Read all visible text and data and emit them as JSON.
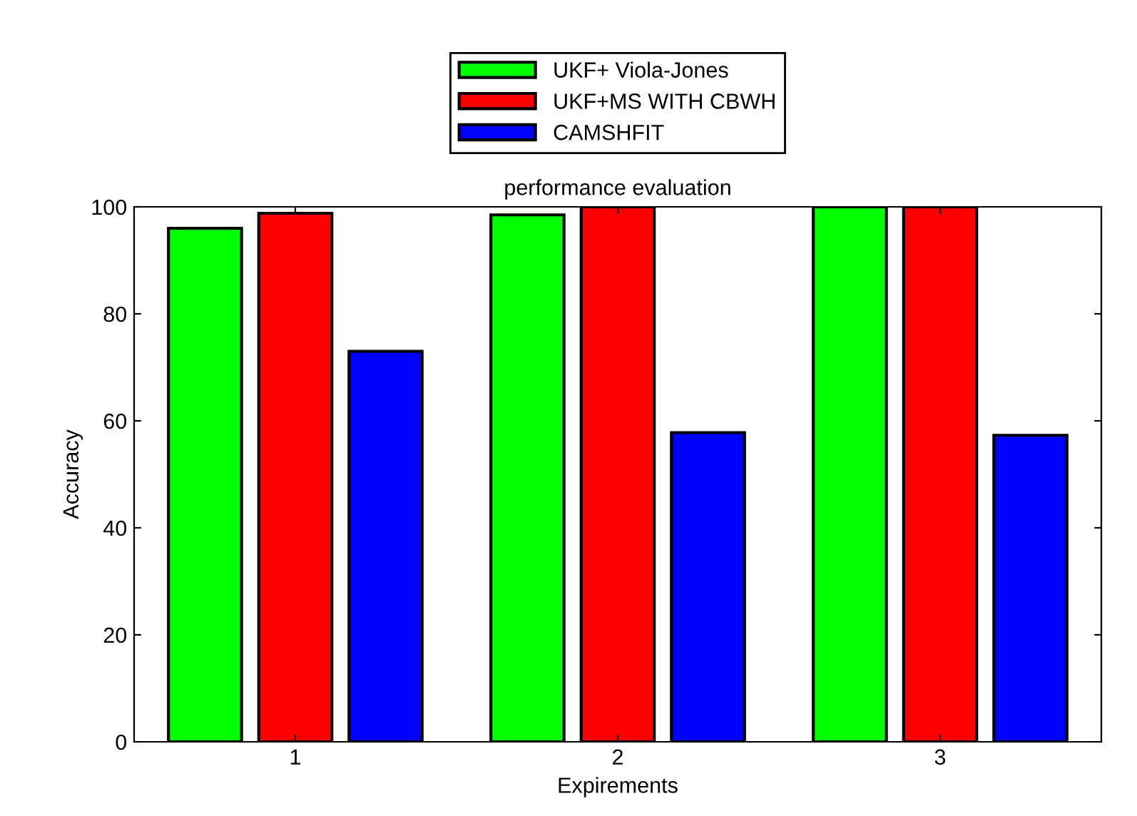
{
  "chart_data": {
    "type": "bar",
    "title": "performance evaluation",
    "xlabel": "Expirements",
    "ylabel": "Accuracy",
    "categories": [
      "1",
      "2",
      "3"
    ],
    "series": [
      {
        "name": "UKF+ Viola-Jones",
        "color": "#00ff00",
        "values": [
          96,
          98.5,
          100
        ]
      },
      {
        "name": "UKF+MS WITH CBWH",
        "color": "#ff0000",
        "values": [
          98.8,
          100,
          100
        ]
      },
      {
        "name": "CAMSHFIT",
        "color": "#0000ff",
        "values": [
          73,
          57.8,
          57.3
        ]
      }
    ],
    "ylim": [
      0,
      100
    ],
    "yticks": [
      0,
      20,
      40,
      60,
      80,
      100
    ],
    "grid": false,
    "legend": "top"
  }
}
